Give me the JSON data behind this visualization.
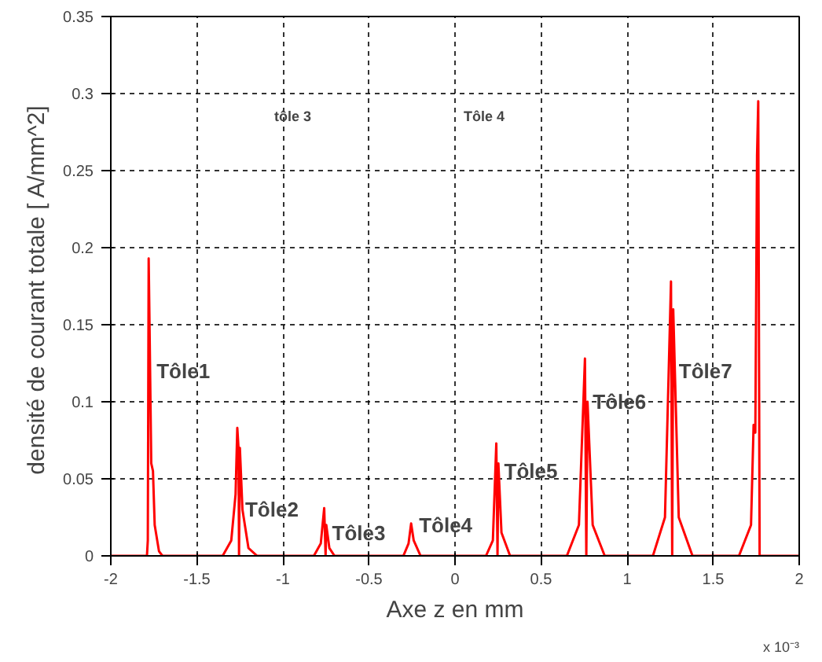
{
  "chart_data": {
    "type": "line",
    "xlabel": "Axe z en mm",
    "ylabel": "densité de courant totale  [ A/mm^2]",
    "x": [
      -2,
      -1.79,
      -1.785,
      -1.78,
      -1.775,
      -1.765,
      -1.755,
      -1.745,
      -1.72,
      -1.7,
      -1.35,
      -1.3,
      -1.275,
      -1.265,
      -1.258,
      -1.255,
      -1.25,
      -1.235,
      -1.2,
      -1.15,
      -0.82,
      -0.78,
      -0.76,
      -0.752,
      -0.748,
      -0.73,
      -0.7,
      -0.3,
      -0.27,
      -0.255,
      -0.24,
      -0.2,
      0.18,
      0.22,
      0.24,
      0.247,
      0.252,
      0.27,
      0.32,
      0.65,
      0.72,
      0.755,
      0.763,
      0.77,
      0.8,
      0.87,
      1.15,
      1.22,
      1.255,
      1.262,
      1.268,
      1.3,
      1.38,
      1.65,
      1.72,
      1.735,
      1.745,
      1.755,
      1.762,
      1.77,
      2
    ],
    "series": [
      {
        "color": "#ff0000",
        "values": [
          0,
          0,
          0.01,
          0.193,
          0.15,
          0.06,
          0.055,
          0.02,
          0.003,
          0,
          0,
          0.01,
          0.04,
          0.083,
          0.07,
          0,
          0.07,
          0.03,
          0.005,
          0,
          0,
          0.008,
          0.031,
          0,
          0.02,
          0.005,
          0,
          0,
          0.008,
          0.021,
          0.01,
          0,
          0,
          0.01,
          0.073,
          0,
          0.06,
          0.015,
          0,
          0,
          0.02,
          0.128,
          0,
          0.1,
          0.02,
          0,
          0,
          0.025,
          0.178,
          0,
          0.16,
          0.025,
          0,
          0,
          0.02,
          0.085,
          0.08,
          0.26,
          0.295,
          0,
          0
        ]
      }
    ],
    "xlim": [
      -2,
      2
    ],
    "ylim": [
      0,
      0.35
    ],
    "xticks": [
      -2,
      -1.5,
      -1,
      -0.5,
      0,
      0.5,
      1,
      1.5,
      2
    ],
    "yticks": [
      0,
      0.05,
      0.1,
      0.15,
      0.2,
      0.25,
      0.3,
      0.35
    ],
    "grid": true,
    "line_style": "solid",
    "marker": "none",
    "annotations": [
      {
        "text": "Tôle1",
        "x": -1.78,
        "y": 0.12
      },
      {
        "text": "Tôle2",
        "x": -1.265,
        "y": 0.03
      },
      {
        "text": "Tôle3",
        "x": -0.76,
        "y": 0.015
      },
      {
        "text": "Tôle4",
        "x": -0.255,
        "y": 0.02
      },
      {
        "text": "Tôle5",
        "x": 0.24,
        "y": 0.055
      },
      {
        "text": "Tôle6",
        "x": 0.755,
        "y": 0.1
      },
      {
        "text": "Tôle7",
        "x": 1.255,
        "y": 0.12
      },
      "tôle 3",
      "Tôle 4",
      "x 10⁻³"
    ]
  }
}
